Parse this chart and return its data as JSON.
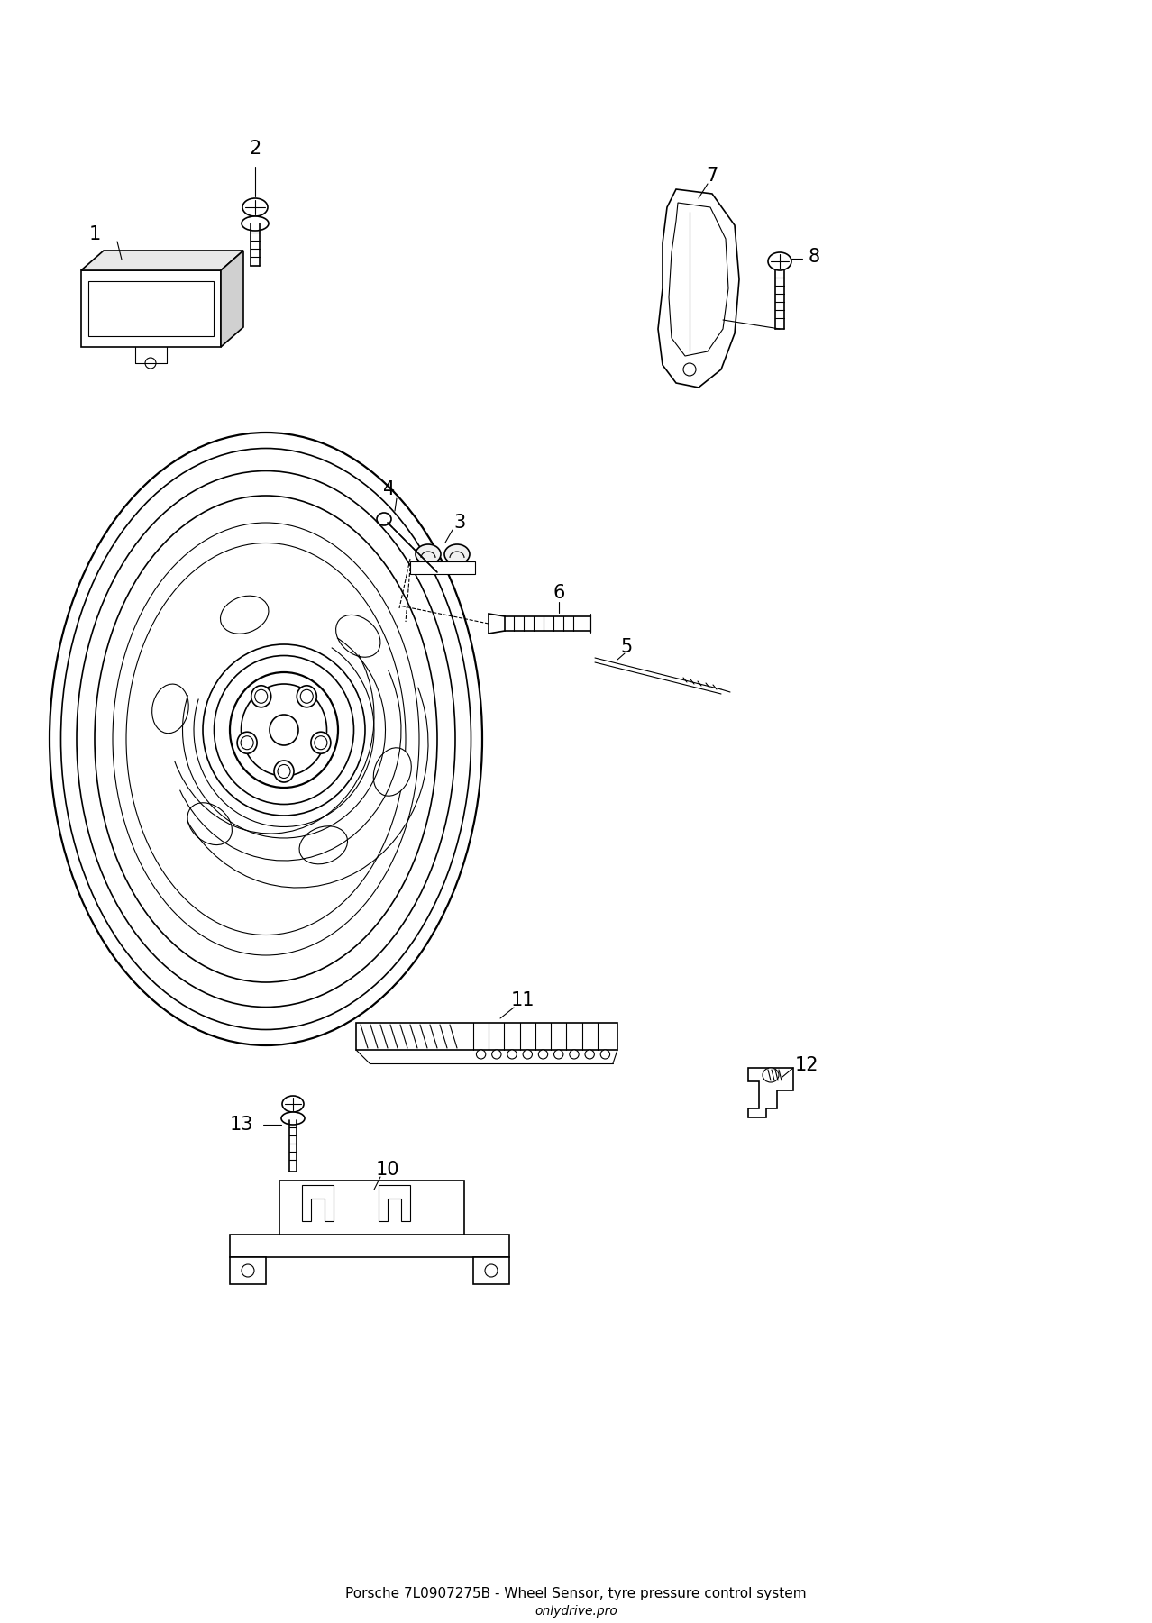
{
  "title": "Porsche 7L0907275B - Wheel Sensor, tyre pressure control system",
  "subtitle": "onlydrive.pro",
  "bg_color": "#ffffff",
  "line_color": "#000000",
  "label_color": "#000000",
  "figsize": [
    12.78,
    18.01
  ],
  "dpi": 100
}
